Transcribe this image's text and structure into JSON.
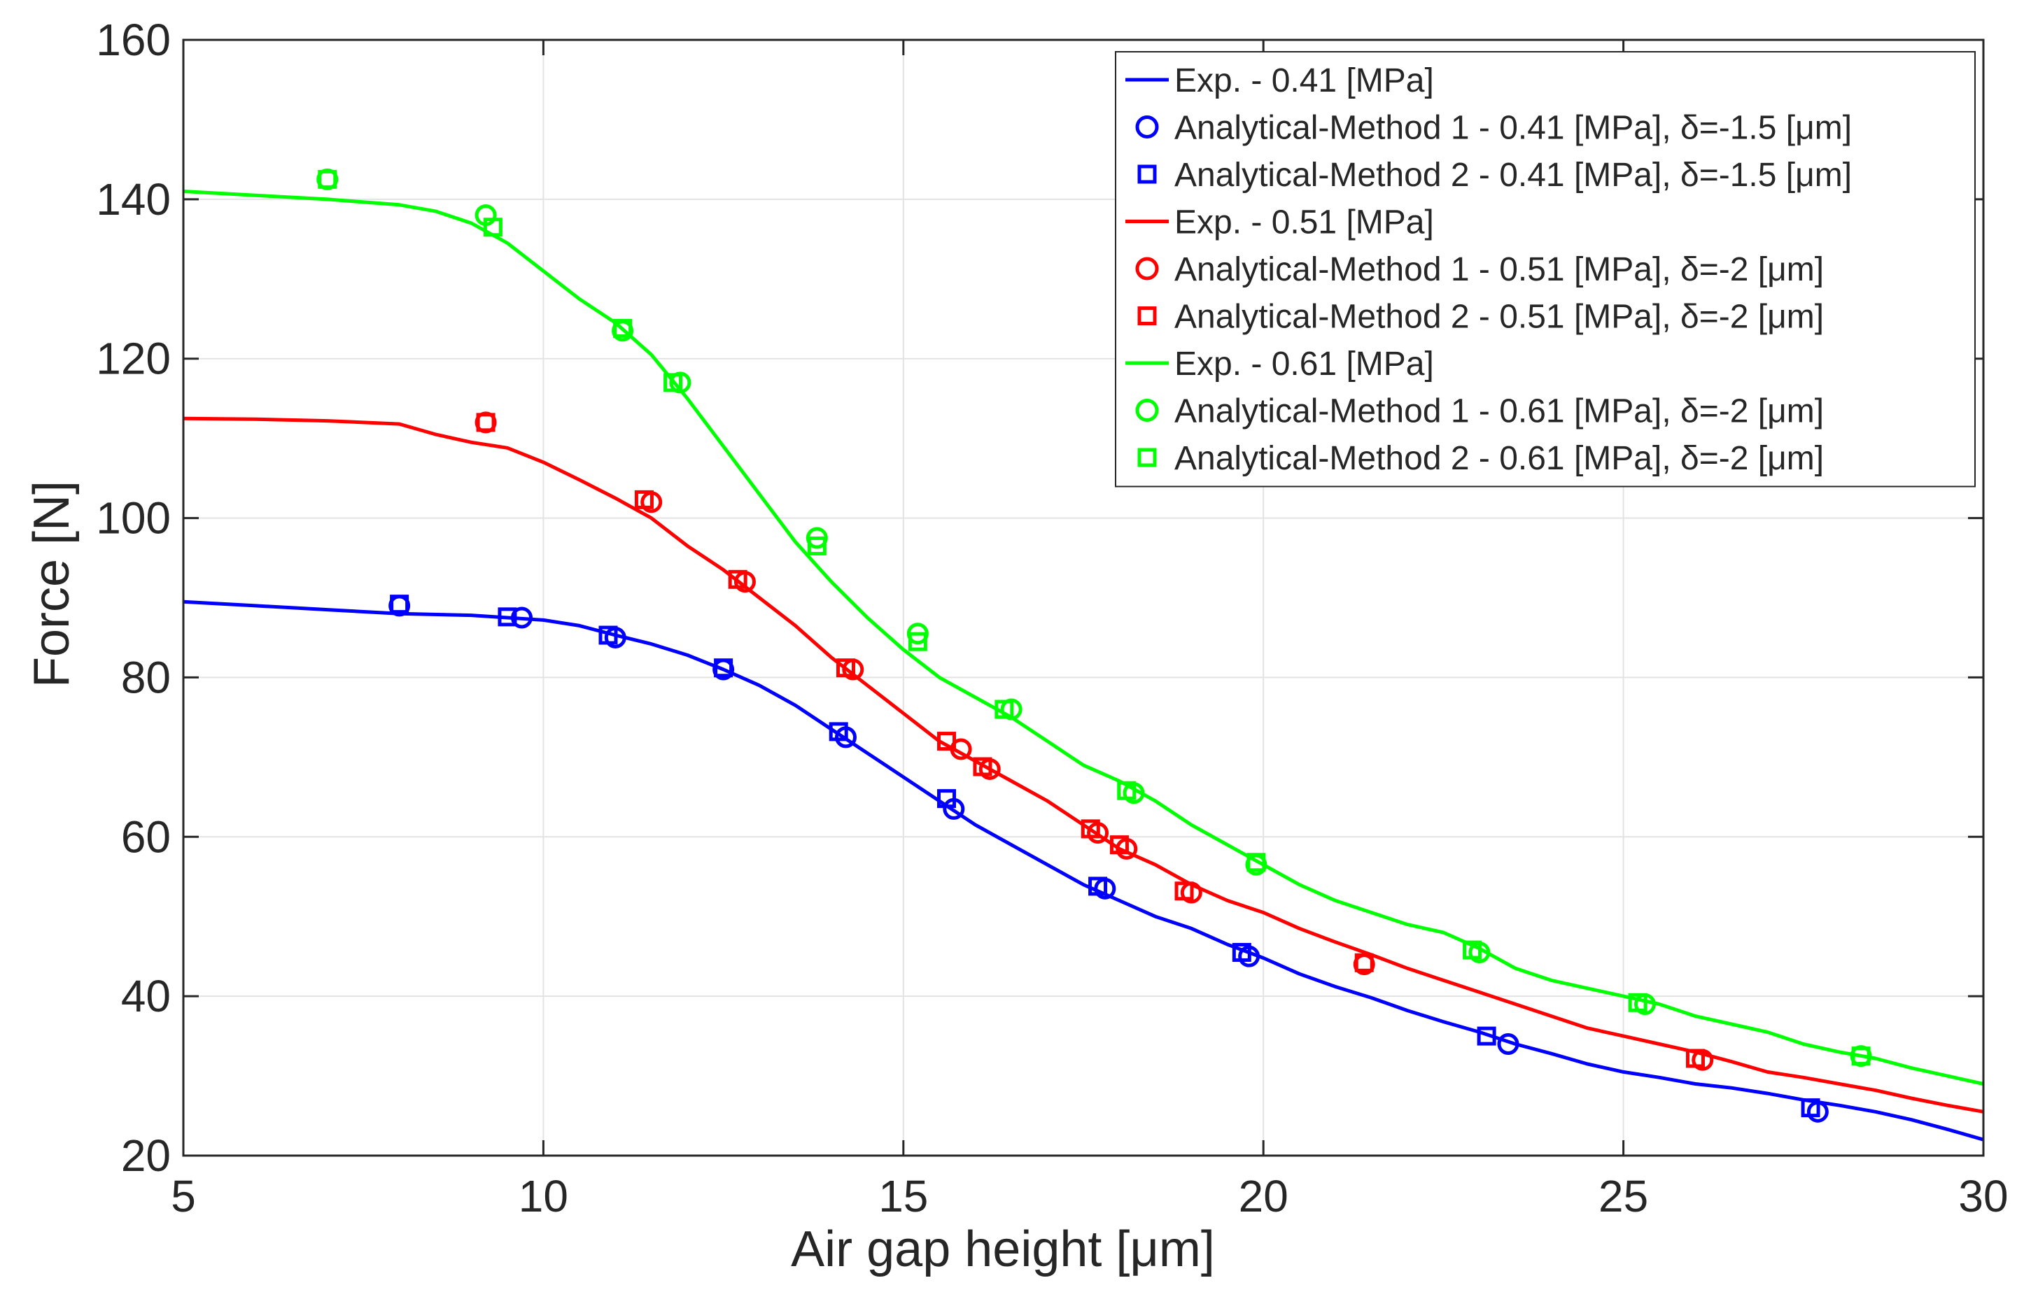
{
  "chart_data": {
    "type": "line",
    "title": "",
    "xlabel": "Air gap height [μm]",
    "ylabel": "Force [N]",
    "xlim": [
      5,
      30
    ],
    "ylim": [
      20,
      160
    ],
    "xticks": [
      5,
      10,
      15,
      20,
      25,
      30
    ],
    "yticks": [
      20,
      40,
      60,
      80,
      100,
      120,
      140,
      160
    ],
    "grid": true,
    "legend_position": "top-right",
    "series": [
      {
        "name": "Exp. - 0.41 [MPa]",
        "kind": "line",
        "color": "#0000ff",
        "x": [
          5,
          6,
          7,
          8,
          9,
          10,
          10.5,
          11,
          11.5,
          12,
          12.5,
          13,
          13.5,
          14,
          14.5,
          15,
          15.5,
          16,
          16.5,
          17,
          17.5,
          18,
          18.5,
          19,
          19.5,
          20,
          20.5,
          21,
          21.5,
          22,
          22.5,
          23,
          23.5,
          24,
          24.5,
          25,
          25.5,
          26,
          26.5,
          27,
          27.5,
          28,
          28.5,
          29,
          29.5,
          30
        ],
        "y": [
          89.5,
          89,
          88.5,
          88,
          87.8,
          87.2,
          86.5,
          85.3,
          84.2,
          82.8,
          81,
          79,
          76.5,
          73.5,
          70.5,
          67.5,
          64.5,
          61.5,
          59,
          56.5,
          54,
          52,
          50,
          48.5,
          46.5,
          44.8,
          42.8,
          41.2,
          39.8,
          38.2,
          36.8,
          35.5,
          34,
          32.8,
          31.5,
          30.5,
          29.8,
          29,
          28.5,
          27.8,
          27,
          26.3,
          25.5,
          24.5,
          23.3,
          22
        ]
      },
      {
        "name": "Analytical-Method 1 - 0.41 [MPa], δ=-1.5 [μm]",
        "kind": "circle",
        "color": "#0000ff",
        "x": [
          8.0,
          9.7,
          11.0,
          12.5,
          14.2,
          15.7,
          17.8,
          19.8,
          23.4,
          27.7
        ],
        "y": [
          89,
          87.5,
          85,
          81,
          72.5,
          63.5,
          53.5,
          45,
          34,
          25.5
        ]
      },
      {
        "name": "Analytical-Method 2 - 0.41 [MPa], δ=-1.5 [μm]",
        "kind": "square",
        "color": "#0000ff",
        "x": [
          8.0,
          9.5,
          10.9,
          12.5,
          14.1,
          15.6,
          17.7,
          19.7,
          23.1,
          27.6
        ],
        "y": [
          89.2,
          87.6,
          85.3,
          81.2,
          73.2,
          64.8,
          53.8,
          45.5,
          35,
          26
        ]
      },
      {
        "name": "Exp. - 0.51 [MPa]",
        "kind": "line",
        "color": "#ff0000",
        "x": [
          5,
          6,
          7,
          8,
          8.5,
          9,
          9.5,
          10,
          10.5,
          11,
          11.5,
          12,
          12.5,
          13,
          13.5,
          14,
          14.5,
          15,
          15.5,
          16,
          16.5,
          17,
          17.5,
          18,
          18.5,
          19,
          19.5,
          20,
          20.5,
          21,
          21.5,
          22,
          22.5,
          23,
          23.5,
          24,
          24.5,
          25,
          25.5,
          26,
          26.5,
          27,
          27.5,
          28,
          28.5,
          29,
          29.5,
          30
        ],
        "y": [
          112.5,
          112.4,
          112.2,
          111.8,
          110.5,
          109.5,
          108.8,
          107,
          104.8,
          102.5,
          100,
          96.5,
          93.5,
          90,
          86.5,
          82.5,
          79,
          75.5,
          72,
          69.5,
          67,
          64.5,
          61.5,
          58.5,
          56.5,
          54,
          52,
          50.5,
          48.5,
          46.8,
          45.2,
          43.5,
          42,
          40.5,
          39,
          37.5,
          36,
          35,
          34,
          33,
          31.8,
          30.5,
          29.8,
          29,
          28.2,
          27.2,
          26.3,
          25.5
        ]
      },
      {
        "name": "Analytical-Method 1 - 0.51 [MPa], δ=-2 [μm]",
        "kind": "circle",
        "color": "#ff0000",
        "x": [
          9.2,
          11.5,
          12.8,
          14.3,
          15.8,
          16.2,
          17.7,
          18.1,
          19.0,
          21.4,
          26.1
        ],
        "y": [
          112,
          102,
          92,
          81,
          71,
          68.5,
          60.5,
          58.5,
          53,
          44,
          32
        ]
      },
      {
        "name": "Analytical-Method 2 - 0.51 [MPa], δ=-2 [μm]",
        "kind": "square",
        "color": "#ff0000",
        "x": [
          9.2,
          11.4,
          12.7,
          14.2,
          15.6,
          16.1,
          17.6,
          18.0,
          18.9,
          21.4,
          26.0
        ],
        "y": [
          112,
          102.3,
          92.3,
          81.2,
          72,
          68.8,
          61,
          59,
          53.2,
          44.2,
          32.2
        ]
      },
      {
        "name": "Exp. - 0.61 [MPa]",
        "kind": "line",
        "color": "#00ff00",
        "x": [
          5,
          6,
          7,
          8,
          8.5,
          9,
          9.5,
          10,
          10.5,
          11,
          11.5,
          12,
          12.5,
          13,
          13.5,
          14,
          14.5,
          15,
          15.5,
          16,
          16.5,
          17,
          17.5,
          18,
          18.5,
          19,
          19.5,
          20,
          20.5,
          21,
          21.5,
          22,
          22.5,
          23,
          23.5,
          24,
          24.5,
          25,
          25.5,
          26,
          26.5,
          27,
          27.5,
          28,
          28.5,
          29,
          29.5,
          30
        ],
        "y": [
          141,
          140.5,
          140,
          139.3,
          138.5,
          137,
          134.5,
          131,
          127.5,
          124.5,
          120.5,
          115,
          109,
          103,
          97,
          92,
          87.5,
          83.5,
          80,
          77.5,
          75,
          72,
          69,
          67,
          64.5,
          61.5,
          59,
          56.5,
          54,
          52,
          50.5,
          49,
          48,
          46,
          43.5,
          42,
          41,
          40,
          39,
          37.5,
          36.5,
          35.5,
          34,
          33,
          32.2,
          31,
          30,
          29
        ]
      },
      {
        "name": "Analytical-Method 1 - 0.61 [MPa], δ=-2 [μm]",
        "kind": "circle",
        "color": "#00ff00",
        "x": [
          7.0,
          9.2,
          11.1,
          11.9,
          13.8,
          15.2,
          16.5,
          18.2,
          19.9,
          23.0,
          25.3,
          28.3
        ],
        "y": [
          142.5,
          138,
          123.5,
          117,
          97.5,
          85.5,
          76,
          65.5,
          56.5,
          45.5,
          39,
          32.5
        ]
      },
      {
        "name": "Analytical-Method 2 - 0.61 [MPa], δ=-2 [μm]",
        "kind": "square",
        "color": "#00ff00",
        "x": [
          7.0,
          9.3,
          11.1,
          11.8,
          13.8,
          15.2,
          16.4,
          18.1,
          19.9,
          22.9,
          25.2,
          28.3
        ],
        "y": [
          142.5,
          136.5,
          123.8,
          117,
          96.5,
          84.5,
          76,
          65.8,
          56.8,
          45.8,
          39.2,
          32.5
        ]
      }
    ]
  }
}
